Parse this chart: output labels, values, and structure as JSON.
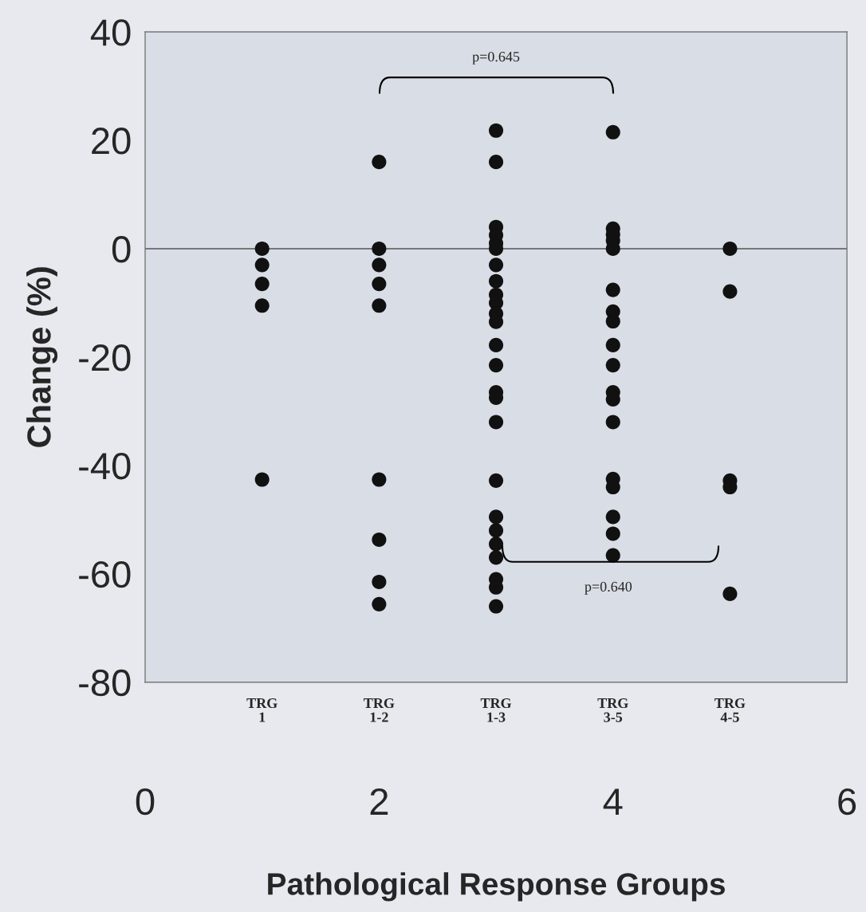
{
  "chart_data": {
    "type": "scatter",
    "xlabel": "Pathological Response Groups",
    "ylabel": "Change (%)",
    "series": [
      {
        "color": "#111111",
        "x": [
          1,
          1,
          1,
          1,
          1,
          2,
          2,
          2,
          2,
          2,
          2,
          2,
          2,
          2,
          3,
          3,
          3,
          3,
          3,
          3,
          3,
          3,
          3,
          3,
          3,
          3,
          3,
          3,
          3,
          3,
          3,
          3,
          3,
          3,
          3,
          3,
          3,
          3,
          3,
          4,
          4,
          4,
          4,
          4,
          4,
          4,
          4,
          4,
          4,
          4,
          4,
          4,
          4,
          4,
          4,
          4,
          4,
          5,
          5,
          5,
          5,
          5
        ],
        "values": [
          0,
          -3,
          -6.5,
          -10.5,
          -42.6,
          16,
          0,
          -3,
          -6.5,
          -10.5,
          -42.6,
          -53.7,
          -61.5,
          -65.6,
          21.8,
          16,
          4,
          2.5,
          1,
          0,
          -3,
          -6,
          -8.5,
          -10,
          -12,
          -13.5,
          -17.8,
          -21.5,
          -26.5,
          -27.5,
          -32,
          -42.8,
          -49.5,
          -52,
          -54.5,
          -57,
          -61,
          -62.5,
          -66,
          21.5,
          3.7,
          2.6,
          1.5,
          0,
          -7.6,
          -11.6,
          -13.4,
          -17.8,
          -21.5,
          -26.5,
          -27.8,
          -32,
          -42.5,
          -44,
          -49.5,
          -52.6,
          -56.6,
          0,
          -7.9,
          -42.8,
          -44,
          -63.7
        ]
      }
    ],
    "xlim": [
      0,
      6
    ],
    "xticks": [
      0,
      2,
      4,
      6
    ],
    "ylim": [
      -80,
      40
    ],
    "yticks": [
      40,
      20,
      0,
      -20,
      -40,
      -60,
      -80
    ],
    "marker": "circle",
    "grid": false,
    "legend": false,
    "ref_lines": [
      {
        "axis": "y",
        "value": 0,
        "color": "#555555"
      }
    ],
    "annotations": [
      "p=0.645",
      "p=0.640",
      "TRG\n1",
      "TRG\n1-2",
      "TRG\n1-3",
      "TRG\n3-5",
      "TRG\n4-5"
    ]
  }
}
